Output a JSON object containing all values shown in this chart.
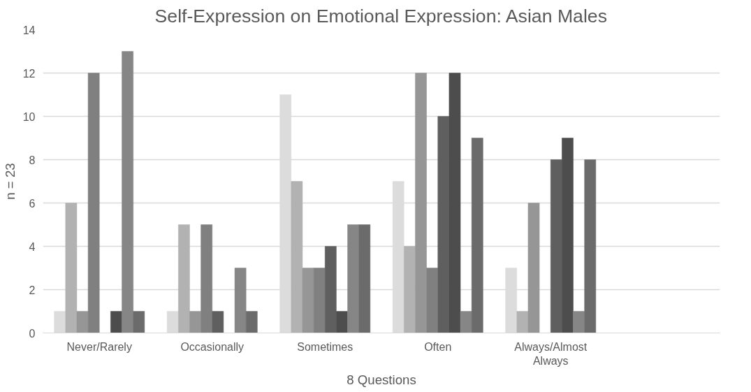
{
  "chart_data": {
    "type": "bar",
    "title": "Self-Expression on Emotional Expression: Asian Males",
    "xlabel": "8 Questions",
    "ylabel": "n = 23",
    "categories": [
      "Never/Rarely",
      "Occasionally",
      "Sometimes",
      "Often",
      "Always/Almost Always",
      null
    ],
    "series": [
      {
        "color": "#dcdcdc",
        "values": [
          1,
          1,
          11,
          7,
          3,
          null
        ]
      },
      {
        "color": "#b2b2b2",
        "values": [
          6,
          5,
          7,
          4,
          1,
          null
        ]
      },
      {
        "color": "#969696",
        "values": [
          1,
          1,
          3,
          12,
          6,
          null
        ]
      },
      {
        "color": "#808080",
        "values": [
          12,
          5,
          3,
          3,
          0,
          null
        ]
      },
      {
        "color": "#5f5f5f",
        "values": [
          0,
          1,
          4,
          10,
          8,
          null
        ]
      },
      {
        "color": "#4d4d4d",
        "values": [
          1,
          0,
          1,
          12,
          9,
          null
        ]
      },
      {
        "color": "#868686",
        "values": [
          13,
          3,
          5,
          1,
          1,
          null
        ]
      },
      {
        "color": "#6b6b6b",
        "values": [
          1,
          1,
          5,
          9,
          8,
          null
        ]
      }
    ],
    "ylim": [
      0,
      14
    ],
    "yticks": [
      0,
      2,
      4,
      6,
      8,
      10,
      12,
      14
    ],
    "grid": "y"
  }
}
